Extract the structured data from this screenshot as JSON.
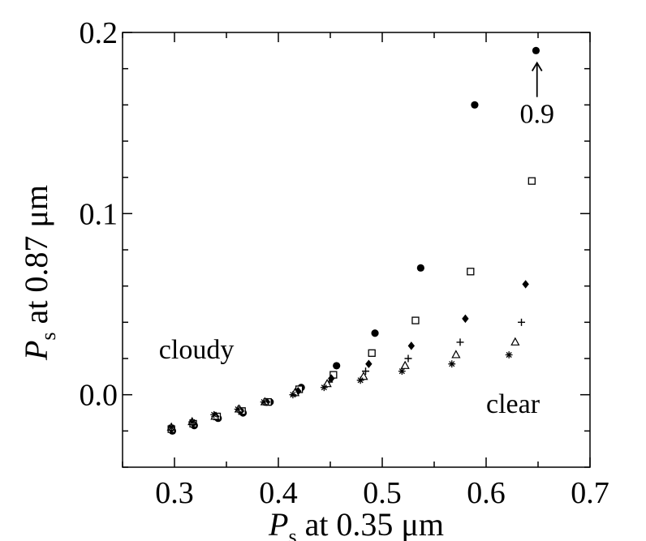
{
  "chart_data": {
    "type": "scatter",
    "title": "",
    "xlabel": {
      "symbol": "P",
      "subscript": "s",
      "rest": " at 0.35 μm"
    },
    "ylabel": {
      "symbol": "P",
      "subscript": "s",
      "rest": " at 0.87 μm"
    },
    "xlim": [
      0.25,
      0.7
    ],
    "ylim": [
      -0.04,
      0.2
    ],
    "xticks": [
      0.3,
      0.4,
      0.5,
      0.6,
      0.7
    ],
    "xtick_labels": [
      "0.3",
      "0.4",
      "0.5",
      "0.6",
      "0.7"
    ],
    "yticks": [
      0.0,
      0.1,
      0.2
    ],
    "ytick_labels": [
      "0.0",
      "0.1",
      "0.2"
    ],
    "grid": false,
    "legend": "none",
    "annotations": [
      {
        "text": "cloudy",
        "x": 0.285,
        "y": 0.02
      },
      {
        "text": "clear",
        "x": 0.6,
        "y": -0.01
      },
      {
        "text": "0.9",
        "x": 0.649,
        "y": 0.15,
        "arrow_to": [
          0.649,
          0.185
        ]
      }
    ],
    "series": [
      {
        "marker": "filled-circle",
        "points": [
          [
            0.298,
            -0.02
          ],
          [
            0.319,
            -0.017
          ],
          [
            0.342,
            -0.013
          ],
          [
            0.366,
            -0.01
          ],
          [
            0.392,
            -0.004
          ],
          [
            0.422,
            0.004
          ],
          [
            0.456,
            0.016
          ],
          [
            0.493,
            0.034
          ],
          [
            0.537,
            0.07
          ],
          [
            0.589,
            0.16
          ],
          [
            0.648,
            0.19
          ]
        ]
      },
      {
        "marker": "open-square",
        "points": [
          [
            0.297,
            -0.019
          ],
          [
            0.318,
            -0.016
          ],
          [
            0.341,
            -0.012
          ],
          [
            0.365,
            -0.009
          ],
          [
            0.39,
            -0.004
          ],
          [
            0.42,
            0.003
          ],
          [
            0.453,
            0.011
          ],
          [
            0.49,
            0.023
          ],
          [
            0.532,
            0.041
          ],
          [
            0.585,
            0.068
          ],
          [
            0.644,
            0.118
          ]
        ]
      },
      {
        "marker": "filled-diamond",
        "points": [
          [
            0.297,
            -0.019
          ],
          [
            0.318,
            -0.016
          ],
          [
            0.34,
            -0.012
          ],
          [
            0.364,
            -0.009
          ],
          [
            0.389,
            -0.004
          ],
          [
            0.419,
            0.002
          ],
          [
            0.451,
            0.009
          ],
          [
            0.487,
            0.017
          ],
          [
            0.528,
            0.027
          ],
          [
            0.58,
            0.042
          ],
          [
            0.638,
            0.061
          ]
        ]
      },
      {
        "marker": "plus",
        "points": [
          [
            0.297,
            -0.018
          ],
          [
            0.317,
            -0.015
          ],
          [
            0.339,
            -0.012
          ],
          [
            0.363,
            -0.008
          ],
          [
            0.388,
            -0.004
          ],
          [
            0.417,
            0.001
          ],
          [
            0.449,
            0.007
          ],
          [
            0.484,
            0.013
          ],
          [
            0.525,
            0.02
          ],
          [
            0.575,
            0.029
          ],
          [
            0.634,
            0.04
          ]
        ]
      },
      {
        "marker": "open-triangle",
        "points": [
          [
            0.297,
            -0.018
          ],
          [
            0.317,
            -0.015
          ],
          [
            0.339,
            -0.012
          ],
          [
            0.362,
            -0.008
          ],
          [
            0.387,
            -0.004
          ],
          [
            0.416,
            0.001
          ],
          [
            0.447,
            0.006
          ],
          [
            0.482,
            0.01
          ],
          [
            0.522,
            0.016
          ],
          [
            0.571,
            0.022
          ],
          [
            0.628,
            0.029
          ]
        ]
      },
      {
        "marker": "asterisk",
        "points": [
          [
            0.297,
            -0.018
          ],
          [
            0.317,
            -0.015
          ],
          [
            0.338,
            -0.011
          ],
          [
            0.361,
            -0.008
          ],
          [
            0.386,
            -0.004
          ],
          [
            0.414,
            0.0
          ],
          [
            0.444,
            0.004
          ],
          [
            0.479,
            0.008
          ],
          [
            0.519,
            0.013
          ],
          [
            0.567,
            0.017
          ],
          [
            0.622,
            0.022
          ]
        ]
      }
    ]
  }
}
